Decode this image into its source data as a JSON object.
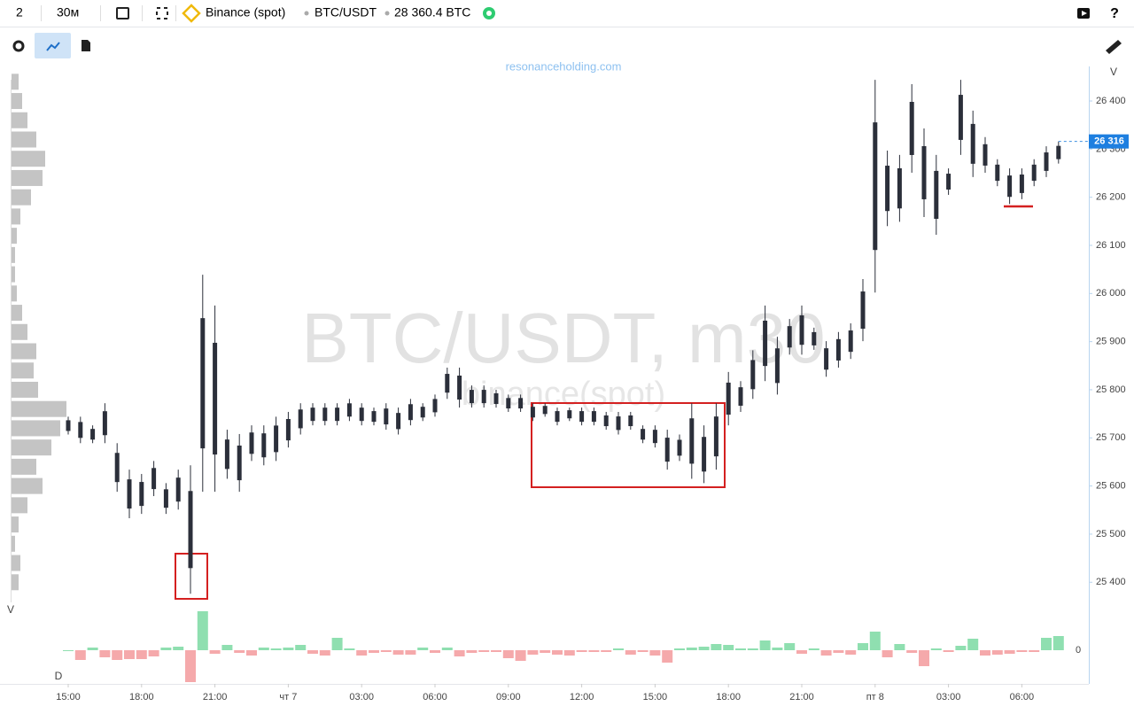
{
  "toolbar": {
    "layout": "2",
    "timeframe": "30м",
    "exchange": "Binance (spot)",
    "symbol": "BTC/USDT",
    "volume": "28 360.4 BTC"
  },
  "chart_data": {
    "type": "range",
    "watermark": "BTC/USDT, m30",
    "watermark_exchange": "binance(spot)",
    "site": "resonanceholding.com",
    "price_axis_label": "V",
    "profile_label": "V",
    "delta_label": "D",
    "categories": [
      "15:00",
      null,
      null,
      null,
      null,
      null,
      "18:00",
      null,
      null,
      null,
      null,
      null,
      "21:00",
      null,
      null,
      null,
      null,
      null,
      "чт 7",
      null,
      null,
      null,
      null,
      null,
      "03:00",
      null,
      null,
      null,
      null,
      null,
      "06:00",
      null,
      null,
      null,
      null,
      null,
      "09:00",
      null,
      null,
      null,
      null,
      null,
      "12:00",
      null,
      null,
      null,
      null,
      null,
      "15:00",
      null,
      null,
      null,
      null,
      null,
      "18:00",
      null,
      null,
      null,
      null,
      null,
      "21:00",
      null,
      null,
      null,
      null,
      null,
      "пт 8",
      null,
      null,
      null,
      null,
      null,
      "03:00",
      null,
      null,
      null,
      null,
      null,
      "06:00",
      null,
      null,
      null
    ],
    "high": [
      25744,
      25744,
      25726,
      25772,
      25689,
      25634,
      25625,
      25652,
      25606,
      25634,
      25643,
      26039,
      25975,
      25717,
      25708,
      25726,
      25726,
      25744,
      25754,
      25772,
      25772,
      25772,
      25772,
      25781,
      25772,
      25763,
      25772,
      25763,
      25781,
      25772,
      25790,
      25846,
      25846,
      25809,
      25809,
      25800,
      25790,
      25790,
      25772,
      25772,
      25763,
      25763,
      25763,
      25763,
      25754,
      25754,
      25754,
      25726,
      25726,
      25717,
      25707,
      25772,
      25726,
      25772,
      25837,
      25818,
      25882,
      25975,
      25910,
      25947,
      25975,
      25929,
      25901,
      25920,
      25938,
      26030,
      26444,
      26297,
      26288,
      26435,
      26343,
      26288,
      26260,
      26444,
      26380,
      26325,
      26279,
      26260,
      26260,
      26279,
      26306,
      26316
    ],
    "low": [
      25707,
      25689,
      25689,
      25689,
      25588,
      25533,
      25542,
      25579,
      25542,
      25551,
      25376,
      25588,
      25588,
      25615,
      25588,
      25652,
      25643,
      25652,
      25680,
      25707,
      25726,
      25726,
      25726,
      25735,
      25726,
      25726,
      25717,
      25707,
      25726,
      25735,
      25744,
      25781,
      25763,
      25763,
      25763,
      25763,
      25754,
      25754,
      25735,
      25744,
      25726,
      25735,
      25726,
      25726,
      25717,
      25707,
      25717,
      25689,
      25680,
      25634,
      25652,
      25615,
      25606,
      25634,
      25726,
      25754,
      25781,
      25818,
      25790,
      25873,
      25873,
      25883,
      25827,
      25846,
      25864,
      25901,
      26002,
      26140,
      26149,
      26251,
      26159,
      26122,
      26205,
      26288,
      26242,
      26251,
      26223,
      26186,
      26196,
      26223,
      26242,
      26270
    ],
    "color": "#2b2f3a",
    "ylim": [
      25360,
      26470
    ],
    "yticks": [
      {
        "value": 25400,
        "label": "25 400"
      },
      {
        "value": 25500,
        "label": "25 500"
      },
      {
        "value": 25600,
        "label": "25 600"
      },
      {
        "value": 25700,
        "label": "25 700"
      },
      {
        "value": 25800,
        "label": "25 800"
      },
      {
        "value": 25900,
        "label": "25 900"
      },
      {
        "value": 26000,
        "label": "26 000"
      },
      {
        "value": 26100,
        "label": "26 100"
      },
      {
        "value": 26200,
        "label": "26 200"
      },
      {
        "value": 26300,
        "label": "26 300"
      },
      {
        "value": 26400,
        "label": "26 400"
      }
    ],
    "last_price": {
      "value": 26316,
      "label": "26 316"
    },
    "delta": [
      0,
      -11,
      3,
      -8,
      -11,
      -10,
      -10,
      -7,
      3,
      4,
      -36,
      44,
      -4,
      6,
      -3,
      -6,
      3,
      2,
      3,
      6,
      -4,
      -6,
      14,
      2,
      -6,
      -3,
      -2,
      -5,
      -5,
      3,
      -3,
      3,
      -7,
      -3,
      -2,
      -2,
      -9,
      -12,
      -5,
      -3,
      -5,
      -6,
      -2,
      -2,
      -2,
      2,
      -5,
      -2,
      -6,
      -14,
      2,
      3,
      4,
      7,
      6,
      2,
      2,
      11,
      3,
      8,
      -4,
      2,
      -6,
      -3,
      -5,
      8,
      21,
      -8,
      7,
      -3,
      -18,
      2,
      -2,
      5,
      13,
      -6,
      -5,
      -4,
      -2,
      -2,
      14,
      16
    ],
    "delta_colors": {
      "positive": "#8fdfb0",
      "negative": "#f5a9ab"
    },
    "delta_ylim": [
      -38,
      46
    ],
    "delta_yticks": [
      0
    ],
    "volume_profile": {
      "prices": [
        25400,
        25440,
        25480,
        25520,
        25560,
        25600,
        25640,
        25680,
        25720,
        25760,
        25800,
        25840,
        25880,
        25920,
        25960,
        26000,
        26040,
        26080,
        26120,
        26160,
        26200,
        26240,
        26280,
        26320,
        26360,
        26400,
        26440
      ],
      "volumes": [
        8,
        10,
        4,
        8,
        18,
        35,
        28,
        45,
        55,
        62,
        30,
        25,
        28,
        18,
        12,
        6,
        4,
        4,
        6,
        10,
        22,
        35,
        38,
        28,
        18,
        12,
        8
      ],
      "color": "#c4c4c4"
    }
  }
}
